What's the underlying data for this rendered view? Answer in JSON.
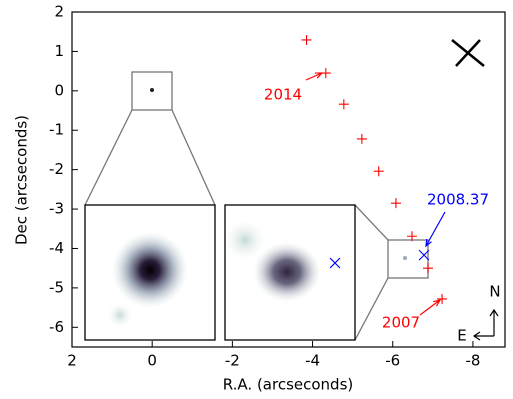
{
  "chart_data": {
    "type": "scatter",
    "xlabel": "R.A. (arcseconds)",
    "ylabel": "Dec (arcseconds)",
    "xlim": [
      2,
      -8.8
    ],
    "ylim": [
      -6.5,
      2
    ],
    "xticks": [
      2,
      0,
      -2,
      -4,
      -6,
      -8
    ],
    "yticks": [
      2,
      1,
      0,
      -1,
      -2,
      -3,
      -4,
      -5,
      -6
    ],
    "series": [
      {
        "color": "#ff0000",
        "marker": "+",
        "x": [
          -3.85,
          -4.33,
          -4.78,
          -5.23,
          -5.65,
          -6.08,
          -6.48,
          -6.88,
          -7.23
        ],
        "y": [
          1.29,
          0.45,
          -0.34,
          -1.22,
          -2.04,
          -2.85,
          -3.69,
          -4.5,
          -5.28
        ]
      },
      {
        "color": "#0000ff",
        "marker": "x",
        "x": [
          -6.78
        ],
        "y": [
          -4.17
        ]
      }
    ],
    "annotations": [
      {
        "text": "2014",
        "color": "#ff0000"
      },
      {
        "text": "2008.37",
        "color": "#0000ff"
      },
      {
        "text": "2007",
        "color": "#ff0000"
      }
    ],
    "compass": {
      "north": "N",
      "east": "E"
    }
  }
}
